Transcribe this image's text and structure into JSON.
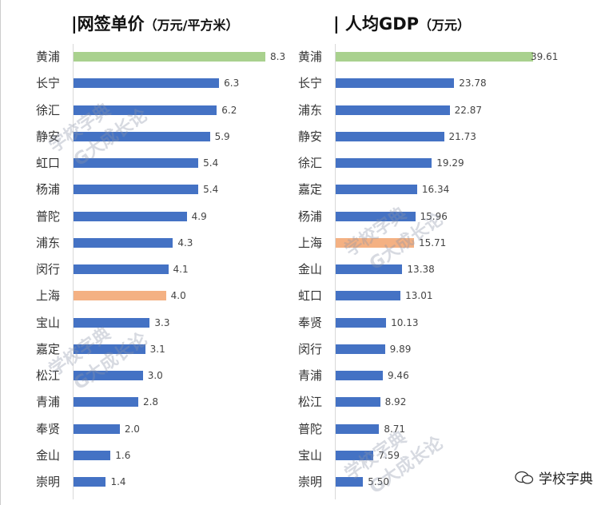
{
  "chart_data": [
    {
      "type": "bar",
      "orientation": "horizontal",
      "title": "|网签单价",
      "unit": "（万元/平方米）",
      "categories": [
        "黄浦",
        "长宁",
        "徐汇",
        "静安",
        "虹口",
        "杨浦",
        "普陀",
        "浦东",
        "闵行",
        "上海",
        "宝山",
        "嘉定",
        "松江",
        "青浦",
        "奉贤",
        "金山",
        "崇明"
      ],
      "values": [
        8.3,
        6.3,
        6.2,
        5.9,
        5.4,
        5.4,
        4.9,
        4.3,
        4.1,
        4.0,
        3.3,
        3.1,
        3.0,
        2.8,
        2.0,
        1.6,
        1.4
      ],
      "labels": [
        "8.3",
        "6.3",
        "6.2",
        "5.9",
        "5.4",
        "5.4",
        "4.9",
        "4.3",
        "4.1",
        "4.0",
        "3.3",
        "3.1",
        "3.0",
        "2.8",
        "2.0",
        "1.6",
        "1.4"
      ],
      "xlim": [
        0,
        8.3
      ],
      "highlight": {
        "黄浦": "#a9d18e",
        "上海": "#f4b183"
      },
      "bar_color": "#4472c4"
    },
    {
      "type": "bar",
      "orientation": "horizontal",
      "title": "| 人均GDP",
      "unit": "（万元）",
      "categories": [
        "黄浦",
        "长宁",
        "浦东",
        "静安",
        "徐汇",
        "嘉定",
        "杨浦",
        "上海",
        "金山",
        "虹口",
        "奉贤",
        "闵行",
        "青浦",
        "松江",
        "普陀",
        "宝山",
        "崇明"
      ],
      "values": [
        39.61,
        23.78,
        22.87,
        21.73,
        19.29,
        16.34,
        15.96,
        15.71,
        13.38,
        13.01,
        10.13,
        9.89,
        9.46,
        8.92,
        8.71,
        7.59,
        5.5
      ],
      "labels": [
        "39.61",
        "23.78",
        "22.87",
        "21.73",
        "19.29",
        "16.34",
        "15.96",
        "15.71",
        "13.38",
        "13.01",
        "10.13",
        "9.89",
        "9.46",
        "8.92",
        "8.71",
        "7.59",
        "5.50"
      ],
      "xlim": [
        0,
        39.61
      ],
      "highlight": {
        "黄浦": "#a9d18e",
        "上海": "#f4b183"
      },
      "bar_color": "#4472c4"
    }
  ],
  "watermark": {
    "line1": "学校字典",
    "line2": "G大成长论"
  },
  "footer": {
    "brand": "学校字典",
    "icon": "wechat-icon"
  }
}
